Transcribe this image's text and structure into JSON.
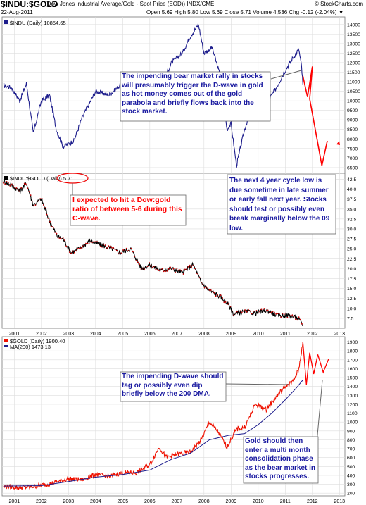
{
  "header": {
    "title": "$INDU:$GOLD",
    "name": "(Dow Jones Industrial Average/Gold - Spot Price (EOD)) INDX/CME",
    "date": "22-Aug-2011",
    "stats": "Open 5.69  High 5.80  Low 5.69  Close 5.71  Volume 4,536  Chg -0.12 (-2.04%) ▼",
    "logo": "© StockCharts.com"
  },
  "colors": {
    "price": "#1d1d8c",
    "ratio": "#000000",
    "ratio_dots": "#cc0000",
    "gold": "#ee1100",
    "ma": "#1d1d8c",
    "projection": "#ff0000",
    "annotation_text": "#1a1aa0",
    "annotation_text_red": "#ff0000",
    "grid": "#dddddd",
    "axis_text": "#000000"
  },
  "chart_data": [
    {
      "type": "line",
      "legend": "$INDU (Daily) 10854.65",
      "x_ticks": [
        "2001",
        "2002",
        "2003",
        "2004",
        "2005",
        "2006",
        "2007",
        "2008",
        "2009",
        "2010",
        "2011",
        "2012",
        "2013"
      ],
      "y_ticks": [
        6500,
        7000,
        7500,
        8000,
        8500,
        9000,
        9500,
        10000,
        10500,
        11000,
        11500,
        12000,
        12500,
        13000,
        13500,
        14000
      ],
      "ylim": [
        6200,
        14400
      ],
      "series": [
        {
          "name": "$INDU",
          "x": [
            2000.6,
            2000.9,
            2001.2,
            2001.45,
            2001.7,
            2002.0,
            2002.3,
            2002.55,
            2002.8,
            2003.2,
            2003.5,
            2004.0,
            2004.5,
            2004.9,
            2005.3,
            2005.8,
            2006.2,
            2006.5,
            2006.8,
            2007.2,
            2007.5,
            2007.8,
            2008.0,
            2008.3,
            2008.6,
            2008.85,
            2009.0,
            2009.2,
            2009.5,
            2009.8,
            2010.2,
            2010.4,
            2010.6,
            2011.0,
            2011.3,
            2011.5,
            2011.6,
            2011.65
          ],
          "y": [
            10800,
            10700,
            10000,
            10900,
            8300,
            10000,
            10300,
            8500,
            7600,
            7900,
            9100,
            10500,
            10300,
            10800,
            10200,
            10800,
            11100,
            11000,
            12000,
            12500,
            13400,
            14000,
            12500,
            12800,
            11300,
            8500,
            8800,
            6600,
            8500,
            9900,
            10700,
            10100,
            10500,
            11600,
            12300,
            12700,
            11800,
            10854.65
          ]
        }
      ]
    },
    {
      "type": "line",
      "legend": "$INDU:$GOLD (Daily) 5.71",
      "x_ticks": [
        "2001",
        "2002",
        "2003",
        "2004",
        "2005",
        "2006",
        "2007",
        "2008",
        "2009",
        "2010",
        "2011",
        "2012",
        "2013"
      ],
      "y_ticks": [
        7.5,
        10.0,
        12.5,
        15.0,
        17.5,
        20.0,
        22.5,
        25.0,
        27.5,
        30.0,
        32.5,
        35.0,
        37.5,
        40.0,
        42.5
      ],
      "ylim": [
        5.0,
        44.0
      ],
      "series": [
        {
          "name": "$INDU:$GOLD",
          "x": [
            2000.6,
            2000.9,
            2001.2,
            2001.45,
            2001.7,
            2002.0,
            2002.3,
            2002.6,
            2002.8,
            2003.1,
            2003.4,
            2003.8,
            2004.2,
            2004.6,
            2004.9,
            2005.3,
            2005.7,
            2006.0,
            2006.4,
            2006.8,
            2007.2,
            2007.6,
            2007.9,
            2008.2,
            2008.6,
            2008.9,
            2009.1,
            2009.5,
            2009.9,
            2010.3,
            2010.7,
            2011.0,
            2011.3,
            2011.5,
            2011.65
          ],
          "y": [
            42,
            41,
            39.5,
            41.5,
            36,
            37.5,
            32,
            28,
            27.5,
            24,
            25,
            27,
            26,
            25,
            24,
            25,
            20,
            21,
            19.5,
            20,
            19,
            21,
            16.5,
            14.5,
            13,
            11,
            8.5,
            9.2,
            8.8,
            9.5,
            8.2,
            8.3,
            8.0,
            7.3,
            5.71
          ]
        }
      ]
    },
    {
      "type": "line",
      "legend": "$GOLD (Daily) 1900.40",
      "legend_ma": "MA(200) 1473.13",
      "x_ticks": [
        "2001",
        "2002",
        "2003",
        "2004",
        "2005",
        "2006",
        "2007",
        "2008",
        "2009",
        "2010",
        "2011",
        "2012",
        "2013"
      ],
      "y_ticks": [
        200,
        300,
        400,
        500,
        600,
        700,
        800,
        900,
        1000,
        1100,
        1200,
        1300,
        1400,
        1500,
        1600,
        1700,
        1800,
        1900
      ],
      "ylim": [
        170,
        1960
      ],
      "series": [
        {
          "name": "$GOLD",
          "x": [
            2000.6,
            2001.2,
            2001.6,
            2002.0,
            2002.5,
            2003.0,
            2003.5,
            2004.0,
            2004.5,
            2005.0,
            2005.5,
            2006.0,
            2006.35,
            2006.6,
            2007.0,
            2007.5,
            2007.9,
            2008.2,
            2008.5,
            2008.85,
            2009.2,
            2009.5,
            2009.9,
            2010.3,
            2010.7,
            2011.0,
            2011.3,
            2011.5,
            2011.65
          ],
          "y": [
            275,
            265,
            270,
            290,
            320,
            360,
            350,
            410,
            390,
            430,
            430,
            520,
            720,
            600,
            640,
            660,
            800,
            1000,
            900,
            720,
            920,
            940,
            1200,
            1140,
            1300,
            1400,
            1460,
            1600,
            1900.4
          ]
        },
        {
          "name": "MA(200)",
          "x": [
            2000.6,
            2002.0,
            2003.0,
            2004.0,
            2005.0,
            2006.0,
            2006.8,
            2007.5,
            2008.2,
            2008.9,
            2009.5,
            2010.0,
            2010.5,
            2011.0,
            2011.4,
            2011.65
          ],
          "y": [
            280,
            285,
            330,
            380,
            410,
            460,
            580,
            650,
            800,
            850,
            870,
            970,
            1100,
            1250,
            1380,
            1473.13
          ]
        }
      ]
    }
  ],
  "projections": {
    "dow": {
      "x": [
        2011.65,
        2011.82,
        2012.0,
        2011.9,
        2012.35,
        2012.55
      ],
      "y": [
        11300,
        10200,
        11800,
        10100,
        6600,
        7900
      ]
    },
    "gold": {
      "x": [
        2011.65,
        2011.78,
        2011.9,
        2012.05,
        2012.2,
        2012.4,
        2012.6
      ],
      "y": [
        1900,
        1420,
        1780,
        1540,
        1760,
        1560,
        1710
      ]
    }
  },
  "annotations": {
    "dow_rally": "The impending bear market rally in stocks will presumably trigger the D-wave in gold as hot money comes out of the gold parabola and briefly flows back into the stock market.",
    "cycle_low": "The next 4 year cycle low is due sometime in late summer or early fall next year. Stocks should test or possibly even break marginally below the 09 low.",
    "ratio_target": "I expected to hit a Dow:gold ratio of between 5-6 during this C-wave.",
    "dwave_gold": "The impending D-wave should tag or possibly even dip briefly below the 200 DMA.",
    "gold_consolidation": "Gold should then enter a multi month consolidation phase as the bear market in stocks progresses."
  }
}
